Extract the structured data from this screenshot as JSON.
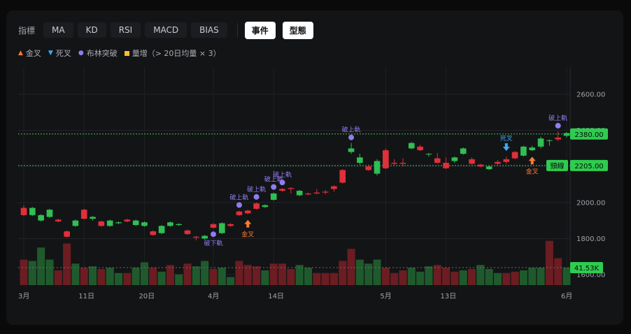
{
  "toolbar": {
    "label": "指標",
    "indicators": [
      "MA",
      "KD",
      "RSI",
      "MACD",
      "BIAS"
    ],
    "toggles": [
      "事件",
      "型態"
    ]
  },
  "legend": {
    "golden_cross": "金叉",
    "death_cross": "死叉",
    "bollinger_break": "布林突破",
    "volume_surge": "量增（> 20日均量 × 3）"
  },
  "colors": {
    "up": "#2fbf52",
    "down": "#e0303a",
    "vol_up": "#1f5a2c",
    "vol_down": "#6b1d22",
    "golden": "#ff7a33",
    "death": "#3fa9f5",
    "boll": "#8f7cf0",
    "volsurge": "#f2c12e",
    "neckline": "#2ecc4f"
  },
  "chart_data": {
    "type": "candlestick",
    "y_axis": {
      "ticks": [
        1600,
        1800,
        2000,
        2200,
        2400,
        2600
      ],
      "tick_labels": [
        "1600.00",
        "1800.00",
        "2000.00",
        "2200.00",
        "2400.00",
        "2600.00"
      ]
    },
    "x_labels": [
      {
        "i": 0,
        "label": "3月"
      },
      {
        "i": 7,
        "label": "11日"
      },
      {
        "i": 14,
        "label": "20日"
      },
      {
        "i": 22,
        "label": "4月"
      },
      {
        "i": 29,
        "label": "14日"
      },
      {
        "i": 42,
        "label": "5月"
      },
      {
        "i": 49,
        "label": "13日"
      },
      {
        "i": 63,
        "label": "6月"
      }
    ],
    "candles": [
      [
        1970,
        1930,
        1985,
        1925
      ],
      [
        1930,
        1970,
        1975,
        1925
      ],
      [
        1900,
        1930,
        1935,
        1895
      ],
      [
        1920,
        1960,
        1965,
        1915
      ],
      [
        1905,
        1895,
        1910,
        1890
      ],
      [
        1840,
        1810,
        1845,
        1805
      ],
      [
        1870,
        1900,
        1905,
        1865
      ],
      [
        1960,
        1910,
        1965,
        1905
      ],
      [
        1910,
        1920,
        1925,
        1900
      ],
      [
        1895,
        1870,
        1900,
        1865
      ],
      [
        1870,
        1900,
        1905,
        1865
      ],
      [
        1885,
        1890,
        1895,
        1880
      ],
      [
        1905,
        1895,
        1910,
        1890
      ],
      [
        1875,
        1900,
        1905,
        1870
      ],
      [
        1870,
        1890,
        1895,
        1865
      ],
      [
        1840,
        1820,
        1845,
        1815
      ],
      [
        1830,
        1870,
        1875,
        1825
      ],
      [
        1870,
        1890,
        1895,
        1865
      ],
      [
        1875,
        1880,
        1885,
        1870
      ],
      [
        1845,
        1825,
        1850,
        1820
      ],
      [
        1810,
        1805,
        1815,
        1790
      ],
      [
        1800,
        1815,
        1820,
        1795
      ],
      [
        1880,
        1860,
        1885,
        1855
      ],
      [
        1830,
        1885,
        1890,
        1825
      ],
      [
        1880,
        1870,
        1885,
        1865
      ],
      [
        1950,
        1930,
        1955,
        1925
      ],
      [
        1955,
        1940,
        1960,
        1935
      ],
      [
        1995,
        1965,
        2000,
        1960
      ],
      [
        1975,
        1985,
        1990,
        1970
      ],
      [
        2015,
        2050,
        2055,
        2010
      ],
      [
        2075,
        2065,
        2080,
        2060
      ],
      [
        2080,
        2075,
        2085,
        2050
      ],
      [
        2040,
        2065,
        2070,
        2035
      ],
      [
        2050,
        2045,
        2055,
        2040
      ],
      [
        2055,
        2050,
        2075,
        2045
      ],
      [
        2060,
        2055,
        2070,
        2045
      ],
      [
        2090,
        2075,
        2095,
        2060
      ],
      [
        2180,
        2110,
        2185,
        2105
      ],
      [
        2280,
        2300,
        2330,
        2270
      ],
      [
        2220,
        2250,
        2270,
        2210
      ],
      [
        2200,
        2180,
        2210,
        2175
      ],
      [
        2160,
        2230,
        2240,
        2150
      ],
      [
        2290,
        2190,
        2300,
        2185
      ],
      [
        2220,
        2215,
        2240,
        2205
      ],
      [
        2220,
        2215,
        2245,
        2200
      ],
      [
        2300,
        2330,
        2335,
        2295
      ],
      [
        2310,
        2290,
        2320,
        2285
      ],
      [
        2270,
        2270,
        2275,
        2255
      ],
      [
        2245,
        2220,
        2275,
        2215
      ],
      [
        2220,
        2190,
        2250,
        2185
      ],
      [
        2230,
        2250,
        2255,
        2220
      ],
      [
        2270,
        2300,
        2305,
        2265
      ],
      [
        2240,
        2215,
        2250,
        2210
      ],
      [
        2210,
        2200,
        2215,
        2195
      ],
      [
        2185,
        2200,
        2205,
        2180
      ],
      [
        2225,
        2215,
        2235,
        2205
      ],
      [
        2240,
        2225,
        2255,
        2215
      ],
      [
        2280,
        2245,
        2285,
        2240
      ],
      [
        2260,
        2310,
        2315,
        2255
      ],
      [
        2290,
        2305,
        2315,
        2285
      ],
      [
        2310,
        2355,
        2365,
        2300
      ],
      [
        2345,
        2345,
        2350,
        2315
      ],
      [
        2360,
        2350,
        2395,
        2340
      ],
      [
        2370,
        2385,
        2390,
        2360
      ]
    ],
    "volume": [
      [
        38,
        "d"
      ],
      [
        36,
        "u"
      ],
      [
        56,
        "u"
      ],
      [
        38,
        "u"
      ],
      [
        22,
        "d"
      ],
      [
        62,
        "d"
      ],
      [
        32,
        "u"
      ],
      [
        26,
        "d"
      ],
      [
        28,
        "u"
      ],
      [
        24,
        "d"
      ],
      [
        26,
        "u"
      ],
      [
        18,
        "u"
      ],
      [
        18,
        "d"
      ],
      [
        26,
        "u"
      ],
      [
        34,
        "u"
      ],
      [
        26,
        "d"
      ],
      [
        20,
        "u"
      ],
      [
        30,
        "d"
      ],
      [
        16,
        "u"
      ],
      [
        32,
        "d"
      ],
      [
        28,
        "u"
      ],
      [
        36,
        "u"
      ],
      [
        24,
        "d"
      ],
      [
        26,
        "u"
      ],
      [
        12,
        "u"
      ],
      [
        36,
        "d"
      ],
      [
        30,
        "d"
      ],
      [
        28,
        "d"
      ],
      [
        22,
        "u"
      ],
      [
        32,
        "d"
      ],
      [
        32,
        "d"
      ],
      [
        24,
        "d"
      ],
      [
        30,
        "u"
      ],
      [
        26,
        "u"
      ],
      [
        18,
        "d"
      ],
      [
        18,
        "d"
      ],
      [
        18,
        "d"
      ],
      [
        36,
        "d"
      ],
      [
        54,
        "d"
      ],
      [
        38,
        "u"
      ],
      [
        32,
        "u"
      ],
      [
        38,
        "u"
      ],
      [
        26,
        "d"
      ],
      [
        18,
        "d"
      ],
      [
        22,
        "d"
      ],
      [
        26,
        "u"
      ],
      [
        20,
        "u"
      ],
      [
        28,
        "u"
      ],
      [
        30,
        "d"
      ],
      [
        26,
        "d"
      ],
      [
        20,
        "d"
      ],
      [
        22,
        "u"
      ],
      [
        24,
        "d"
      ],
      [
        30,
        "u"
      ],
      [
        24,
        "u"
      ],
      [
        18,
        "u"
      ],
      [
        18,
        "d"
      ],
      [
        20,
        "d"
      ],
      [
        22,
        "u"
      ],
      [
        26,
        "u"
      ],
      [
        26,
        "u"
      ],
      [
        66,
        "d"
      ],
      [
        40,
        "d"
      ],
      [
        26,
        "u"
      ]
    ],
    "annotations": [
      {
        "i": 22,
        "type": "boll",
        "label": "破下軌",
        "pos": "below"
      },
      {
        "i": 25,
        "type": "boll",
        "label": "破上軌",
        "pos": "above"
      },
      {
        "i": 27,
        "type": "boll",
        "label": "破上軌",
        "pos": "above"
      },
      {
        "i": 29,
        "type": "boll",
        "label": "破上軌",
        "pos": "above"
      },
      {
        "i": 30,
        "type": "boll",
        "label": "破上軌",
        "pos": "above"
      },
      {
        "i": 38,
        "type": "boll",
        "label": "破上軌",
        "pos": "above"
      },
      {
        "i": 62,
        "type": "boll",
        "label": "破上軌",
        "pos": "above"
      },
      {
        "i": 26,
        "type": "golden",
        "label": "金叉"
      },
      {
        "i": 59,
        "type": "golden",
        "label": "金叉"
      },
      {
        "i": 56,
        "type": "death",
        "label": "死叉"
      }
    ],
    "price_tags": [
      {
        "label": "2380.00",
        "value": 2380
      },
      {
        "label": "2205.00",
        "value": 2205,
        "name": "頸線"
      }
    ],
    "volume_tag": "41.53K"
  }
}
